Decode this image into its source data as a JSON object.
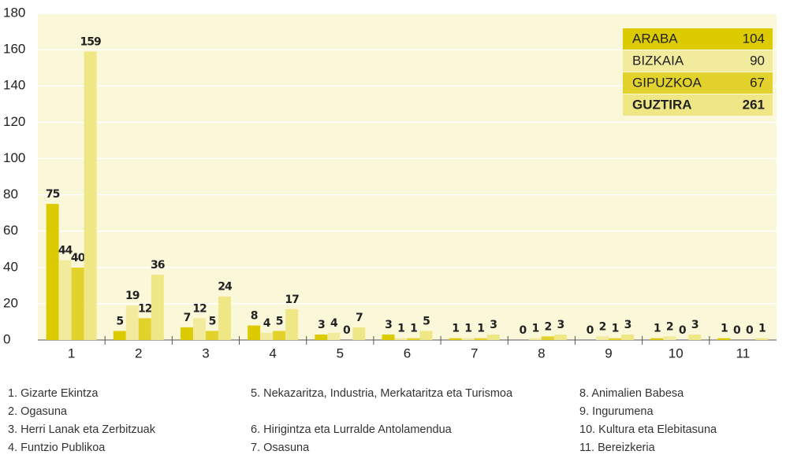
{
  "chart_data": {
    "type": "bar",
    "categories": [
      "1",
      "2",
      "3",
      "4",
      "5",
      "6",
      "7",
      "8",
      "9",
      "10",
      "11"
    ],
    "series": [
      {
        "name": "ARABA",
        "color": "#dccb00",
        "total": 104,
        "values": [
          75,
          5,
          7,
          8,
          3,
          3,
          1,
          0,
          0,
          1,
          1
        ]
      },
      {
        "name": "BIZKAIA",
        "color": "#f2eb9e",
        "total": 90,
        "values": [
          44,
          19,
          12,
          4,
          4,
          1,
          1,
          1,
          2,
          2,
          0
        ]
      },
      {
        "name": "GIPUZKOA",
        "color": "#e3d22c",
        "total": 67,
        "values": [
          40,
          12,
          5,
          5,
          0,
          1,
          1,
          2,
          1,
          0,
          0
        ]
      },
      {
        "name": "GUZTIRA",
        "color": "#efe685",
        "total": 261,
        "values": [
          159,
          36,
          24,
          17,
          7,
          5,
          3,
          3,
          3,
          3,
          1
        ]
      }
    ],
    "ylim": [
      0,
      180
    ],
    "yticks": [
      0,
      20,
      40,
      60,
      80,
      100,
      120,
      140,
      160,
      180
    ],
    "grid": true,
    "legend": "top-right",
    "notes": [
      "1.  Gizarte Ekintza",
      "2.  Ogasuna",
      "3.  Herri Lanak eta Zerbitzuak",
      "4.  Funtzio Publikoa",
      "5.  Nekazaritza, Industria, Merkataritza eta Turismoa",
      "6.  Hirigintza eta Lurralde  Antolamendua",
      "7.  Osasuna",
      "8.  Animalien Babesa",
      "9.  Ingurumena",
      "10. Kultura eta Elebitasuna",
      "11. Bereizkeria"
    ]
  }
}
